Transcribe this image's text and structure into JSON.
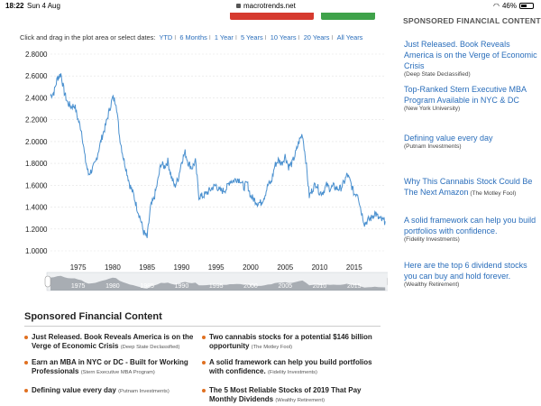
{
  "status": {
    "time": "18:22",
    "date": "Sun 4 Aug",
    "url": "macrotrends.net",
    "battery": "46%"
  },
  "range": {
    "prompt": "Click and drag in the plot area or select dates:",
    "options": [
      "YTD",
      "6 Months",
      "1 Year",
      "5 Years",
      "10 Years",
      "20 Years",
      "All Years"
    ]
  },
  "sidebar": {
    "heading": "SPONSORED FINANCIAL CONTENT",
    "ads": [
      {
        "title": "Just Released. Book Reveals America is on the Verge of Economic Crisis",
        "source": "(Deep State Declassified)"
      },
      {
        "title": "Top-Ranked Stern Executive MBA Program Available in NYC & DC",
        "source": "(New York University)"
      },
      {
        "title": "Defining value every day",
        "source": "(Putnam Investments)"
      },
      {
        "title": "Why This Cannabis Stock Could Be The Next Amazon",
        "source": "(The Motley Fool)"
      },
      {
        "title": "A solid framework can help you build portfolios with confidence.",
        "source": "(Fidelity Investments)"
      },
      {
        "title": "Here are the top 6 dividend stocks you can buy and hold forever.",
        "source": "(Wealthy Retirement)"
      }
    ]
  },
  "bottom": {
    "heading": "Sponsored Financial Content",
    "items": [
      {
        "title": "Just Released. Book Reveals America is on the Verge of Economic Crisis",
        "source": "(Deep State Declassified)"
      },
      {
        "title": "Two cannabis stocks for a potential $146 billion opportunity",
        "source": "(The Motley Fool)"
      },
      {
        "title": "Earn an MBA in NYC or DC - Built for Working Professionals",
        "source": "(Stern Executive MBA Program)"
      },
      {
        "title": "A solid framework can help you build portfolios with confidence.",
        "source": "(Fidelity Investments)"
      },
      {
        "title": "Defining value every day",
        "source": "(Putnam Investments)"
      },
      {
        "title": "The 5 Most Reliable Stocks of 2019 That Pay Monthly Dividends",
        "source": "(Wealthy Retirement)"
      }
    ]
  },
  "colors": {
    "line": "#4a90cf",
    "link": "#2a6ebb",
    "bullet": "#e07020"
  },
  "chart_data": {
    "type": "line",
    "yticks": [
      "2.8000",
      "2.6000",
      "2.4000",
      "2.2000",
      "2.0000",
      "1.8000",
      "1.6000",
      "1.4000",
      "1.2000",
      "1.0000"
    ],
    "ylim": [
      1.0,
      2.8
    ],
    "xticks": [
      "1975",
      "1980",
      "1985",
      "1990",
      "1995",
      "2000",
      "2005",
      "2010",
      "2015"
    ],
    "xlim": [
      1971,
      2019.6
    ],
    "grid": true,
    "x": [
      1971,
      1971.5,
      1972,
      1972.5,
      1973,
      1973.5,
      1974,
      1974.5,
      1975,
      1975.5,
      1976,
      1976.5,
      1977,
      1977.5,
      1978,
      1978.5,
      1979,
      1979.5,
      1980,
      1980.5,
      1981,
      1981.5,
      1982,
      1982.5,
      1983,
      1983.5,
      1984,
      1984.5,
      1985,
      1985.5,
      1986,
      1986.5,
      1987,
      1987.5,
      1988,
      1988.5,
      1989,
      1989.5,
      1990,
      1990.5,
      1991,
      1991.5,
      1992,
      1992.5,
      1993,
      1993.5,
      1994,
      1994.5,
      1995,
      1995.5,
      1996,
      1996.5,
      1997,
      1997.5,
      1998,
      1998.5,
      1999,
      1999.5,
      2000,
      2000.5,
      2001,
      2001.5,
      2002,
      2002.5,
      2003,
      2003.5,
      2004,
      2004.5,
      2005,
      2005.5,
      2006,
      2006.5,
      2007,
      2007.5,
      2008,
      2008.5,
      2009,
      2009.5,
      2010,
      2010.5,
      2011,
      2011.5,
      2012,
      2012.5,
      2013,
      2013.5,
      2014,
      2014.5,
      2015,
      2015.5,
      2016,
      2016.5,
      2017,
      2017.5,
      2018,
      2018.5,
      2019,
      2019.5
    ],
    "values": [
      2.42,
      2.45,
      2.58,
      2.62,
      2.45,
      2.35,
      2.32,
      2.33,
      2.2,
      2.1,
      1.85,
      1.7,
      1.74,
      1.8,
      1.93,
      2.05,
      2.15,
      2.28,
      2.4,
      2.36,
      2.05,
      1.87,
      1.74,
      1.6,
      1.52,
      1.4,
      1.3,
      1.17,
      1.12,
      1.4,
      1.48,
      1.62,
      1.8,
      1.77,
      1.82,
      1.68,
      1.59,
      1.66,
      1.82,
      1.9,
      1.8,
      1.76,
      1.82,
      1.5,
      1.5,
      1.52,
      1.55,
      1.58,
      1.6,
      1.55,
      1.55,
      1.57,
      1.64,
      1.64,
      1.66,
      1.65,
      1.58,
      1.62,
      1.5,
      1.47,
      1.44,
      1.44,
      1.5,
      1.6,
      1.63,
      1.78,
      1.83,
      1.8,
      1.87,
      1.77,
      1.8,
      1.89,
      2.0,
      2.07,
      1.83,
      1.5,
      1.57,
      1.62,
      1.53,
      1.54,
      1.6,
      1.57,
      1.59,
      1.57,
      1.57,
      1.62,
      1.7,
      1.62,
      1.52,
      1.53,
      1.37,
      1.25,
      1.28,
      1.3,
      1.35,
      1.3,
      1.28,
      1.27
    ]
  }
}
